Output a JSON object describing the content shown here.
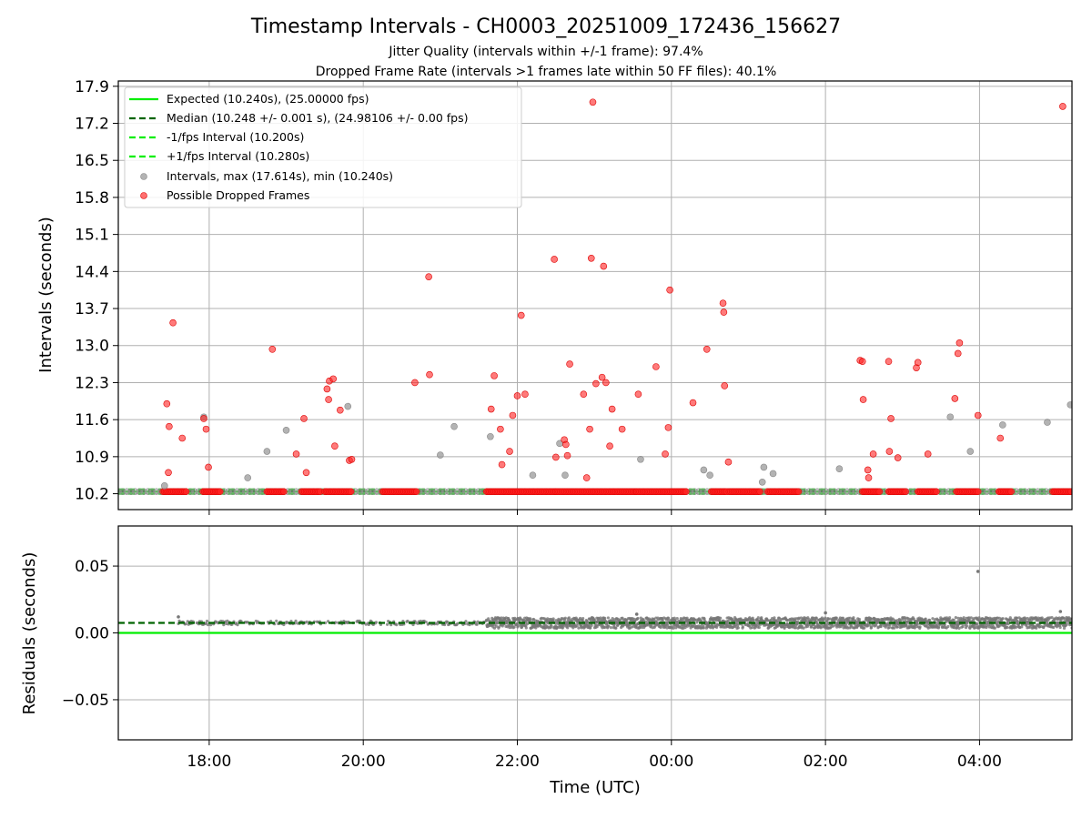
{
  "title": "Timestamp Intervals - CH0003_20251009_172436_156627",
  "subtitle1": "Jitter Quality (intervals within +/-1 frame): 97.4%",
  "subtitle2": "Dropped Frame Rate (intervals >1 frames late within 50 FF files): 40.1%",
  "colors": {
    "expected": "#00ee00",
    "median": "#006400",
    "intervals": "#999999",
    "dropped": "#ff2222",
    "grid": "#b0b0b0",
    "residual_pts": "#777777"
  },
  "chart_data": [
    {
      "type": "scatter",
      "name": "intervals",
      "ylabel": "Intervals (seconds)",
      "xlabel": "",
      "x_unit": "hours since 17:00 UTC",
      "xlim": [
        -0.18,
        12.2
      ],
      "ylim": [
        9.9,
        18.0
      ],
      "yticks": [
        10.2,
        10.9,
        11.6,
        12.3,
        13.0,
        13.7,
        14.4,
        15.1,
        15.8,
        16.5,
        17.2,
        17.9
      ],
      "ytick_labels": [
        "10.2",
        "10.9",
        "11.6",
        "12.3",
        "13.0",
        "13.7",
        "14.4",
        "15.1",
        "15.8",
        "16.5",
        "17.2",
        "17.9"
      ],
      "xticks": [
        1,
        3,
        5,
        7,
        9,
        11
      ],
      "grid": true,
      "legend_position": "top-left",
      "legend": [
        "Expected (10.240s), (25.00000 fps)",
        "Median (10.248 +/- 0.001 s), (24.98106 +/- 0.00 fps)",
        "-1/fps Interval (10.200s)",
        "+1/fps Interval (10.280s)",
        "Intervals, max (17.614s), min (10.240s)",
        "Possible Dropped Frames"
      ],
      "lines": {
        "expected": 10.24,
        "median": 10.248,
        "minus1": 10.2,
        "plus1": 10.28
      },
      "baseline_interval": 10.24,
      "baseline_x_range": [
        -0.18,
        12.2
      ],
      "dropped_baseline_segments": [
        [
          0.4,
          0.72
        ],
        [
          0.92,
          1.15
        ],
        [
          1.75,
          1.98
        ],
        [
          2.2,
          2.45
        ],
        [
          2.5,
          2.85
        ],
        [
          3.25,
          3.7
        ],
        [
          4.6,
          5.5
        ],
        [
          5.5,
          6.55
        ],
        [
          6.55,
          7.2
        ],
        [
          7.52,
          7.72
        ],
        [
          7.75,
          8.15
        ],
        [
          8.25,
          8.65
        ],
        [
          9.48,
          9.7
        ],
        [
          9.82,
          10.05
        ],
        [
          10.2,
          10.45
        ],
        [
          10.7,
          10.98
        ],
        [
          11.25,
          11.42
        ],
        [
          11.95,
          12.2
        ]
      ],
      "intervals_points": [
        [
          0.42,
          10.35
        ],
        [
          0.93,
          11.65
        ],
        [
          1.5,
          10.5
        ],
        [
          1.75,
          11.0
        ],
        [
          2.0,
          11.4
        ],
        [
          2.8,
          11.85
        ],
        [
          4.0,
          10.93
        ],
        [
          4.18,
          11.47
        ],
        [
          4.65,
          11.28
        ],
        [
          5.2,
          10.55
        ],
        [
          5.55,
          11.15
        ],
        [
          5.62,
          10.55
        ],
        [
          6.6,
          10.85
        ],
        [
          7.42,
          10.65
        ],
        [
          7.5,
          10.55
        ],
        [
          8.2,
          10.7
        ],
        [
          8.18,
          10.42
        ],
        [
          8.32,
          10.58
        ],
        [
          9.18,
          10.67
        ],
        [
          10.62,
          11.65
        ],
        [
          10.88,
          11.0
        ],
        [
          11.3,
          11.5
        ],
        [
          11.88,
          11.55
        ],
        [
          12.18,
          11.88
        ]
      ],
      "dropped_points": [
        [
          0.45,
          11.9
        ],
        [
          0.47,
          10.6
        ],
        [
          0.48,
          11.47
        ],
        [
          0.53,
          13.43
        ],
        [
          0.65,
          11.25
        ],
        [
          0.93,
          11.62
        ],
        [
          0.96,
          11.42
        ],
        [
          0.99,
          10.7
        ],
        [
          1.82,
          12.93
        ],
        [
          2.13,
          10.95
        ],
        [
          2.23,
          11.62
        ],
        [
          2.26,
          10.6
        ],
        [
          2.53,
          12.18
        ],
        [
          2.55,
          11.98
        ],
        [
          2.56,
          12.33
        ],
        [
          2.61,
          12.37
        ],
        [
          2.63,
          11.1
        ],
        [
          2.7,
          11.78
        ],
        [
          2.82,
          10.83
        ],
        [
          2.85,
          10.85
        ],
        [
          3.67,
          12.3
        ],
        [
          3.85,
          14.3
        ],
        [
          3.86,
          12.45
        ],
        [
          4.66,
          11.8
        ],
        [
          4.7,
          12.43
        ],
        [
          4.78,
          11.42
        ],
        [
          4.8,
          10.75
        ],
        [
          4.9,
          11.0
        ],
        [
          4.94,
          11.68
        ],
        [
          5.0,
          12.05
        ],
        [
          5.05,
          13.57
        ],
        [
          5.1,
          12.08
        ],
        [
          5.48,
          14.63
        ],
        [
          5.5,
          10.89
        ],
        [
          5.61,
          11.22
        ],
        [
          5.63,
          11.13
        ],
        [
          5.65,
          10.92
        ],
        [
          5.68,
          12.65
        ],
        [
          5.86,
          12.08
        ],
        [
          5.9,
          10.5
        ],
        [
          5.94,
          11.42
        ],
        [
          5.96,
          14.65
        ],
        [
          5.98,
          17.6
        ],
        [
          6.02,
          12.28
        ],
        [
          6.1,
          12.4
        ],
        [
          6.12,
          14.5
        ],
        [
          6.15,
          12.3
        ],
        [
          6.2,
          11.1
        ],
        [
          6.23,
          11.8
        ],
        [
          6.36,
          11.42
        ],
        [
          6.57,
          12.08
        ],
        [
          6.8,
          12.6
        ],
        [
          6.92,
          10.95
        ],
        [
          6.96,
          11.45
        ],
        [
          6.98,
          14.05
        ],
        [
          7.28,
          11.92
        ],
        [
          7.46,
          12.93
        ],
        [
          7.67,
          13.8
        ],
        [
          7.68,
          13.63
        ],
        [
          7.69,
          12.24
        ],
        [
          7.74,
          10.8
        ],
        [
          9.45,
          12.72
        ],
        [
          9.48,
          12.7
        ],
        [
          9.49,
          11.98
        ],
        [
          9.55,
          10.65
        ],
        [
          9.56,
          10.5
        ],
        [
          9.62,
          10.95
        ],
        [
          9.82,
          12.7
        ],
        [
          9.83,
          11.0
        ],
        [
          9.85,
          11.62
        ],
        [
          9.94,
          10.88
        ],
        [
          10.18,
          12.58
        ],
        [
          10.2,
          12.68
        ],
        [
          10.33,
          10.95
        ],
        [
          10.68,
          12.0
        ],
        [
          10.72,
          12.85
        ],
        [
          10.74,
          13.05
        ],
        [
          10.98,
          11.68
        ],
        [
          11.27,
          11.25
        ],
        [
          12.08,
          17.52
        ]
      ]
    },
    {
      "type": "scatter",
      "name": "residuals",
      "ylabel": "Residuals (seconds)",
      "xlabel": "Time (UTC)",
      "xlim": [
        -0.18,
        12.2
      ],
      "ylim": [
        -0.08,
        0.08
      ],
      "yticks": [
        0.05,
        0.0,
        -0.05
      ],
      "ytick_labels": [
        "0.05",
        "0.00",
        "−0.05"
      ],
      "xticks": [
        1,
        3,
        5,
        7,
        9,
        11
      ],
      "xtick_labels": [
        "18:00",
        "20:00",
        "22:00",
        "00:00",
        "02:00",
        "04:00"
      ],
      "grid": true,
      "lines": {
        "expected": 0.0,
        "median": 0.0075
      },
      "residual_band": [
        {
          "x_from": 0.6,
          "x_to": 4.6,
          "center": 0.0075,
          "spread": 0.0015
        },
        {
          "x_from": 4.6,
          "x_to": 12.2,
          "center": 0.0075,
          "spread": 0.004
        }
      ],
      "residual_outliers": [
        [
          0.6,
          0.012
        ],
        [
          10.98,
          0.046
        ],
        [
          6.55,
          0.014
        ],
        [
          9.0,
          0.015
        ],
        [
          12.05,
          0.016
        ]
      ]
    }
  ]
}
